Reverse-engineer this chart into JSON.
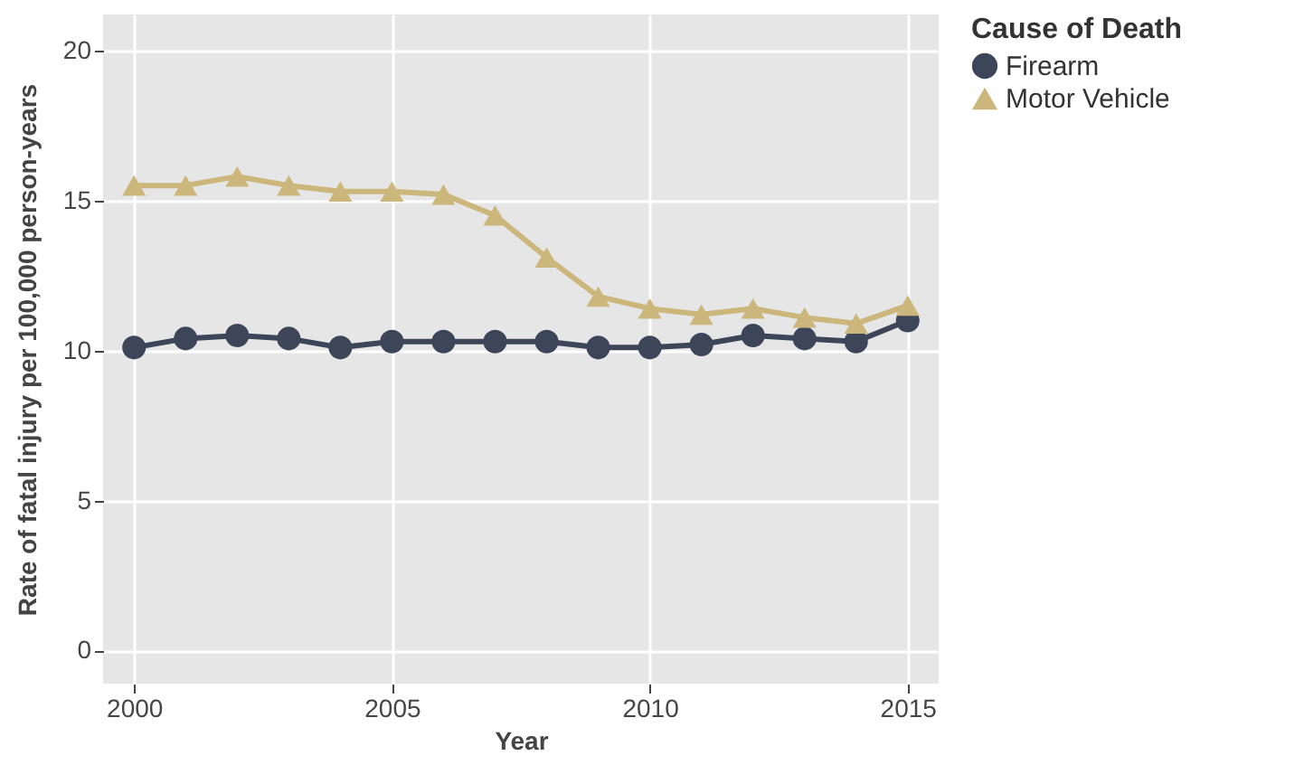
{
  "chart_data": {
    "type": "line",
    "xlabel": "Year",
    "ylabel": "Rate of fatal injury per 100,000 person-years",
    "legend_title": "Cause of Death",
    "x": [
      2000,
      2001,
      2002,
      2003,
      2004,
      2005,
      2006,
      2007,
      2008,
      2009,
      2010,
      2011,
      2012,
      2013,
      2014,
      2015
    ],
    "series": [
      {
        "name": "Firearm",
        "color": "#3d4659",
        "marker": "circle",
        "values": [
          10.1,
          10.4,
          10.5,
          10.4,
          10.1,
          10.3,
          10.3,
          10.3,
          10.3,
          10.1,
          10.1,
          10.2,
          10.5,
          10.4,
          10.3,
          11.0
        ]
      },
      {
        "name": "Motor Vehicle",
        "color": "#cbb77b",
        "marker": "triangle",
        "values": [
          15.5,
          15.5,
          15.8,
          15.5,
          15.3,
          15.3,
          15.2,
          14.5,
          13.1,
          11.8,
          11.4,
          11.2,
          11.4,
          11.1,
          10.9,
          11.5
        ]
      }
    ],
    "xlim": [
      1999.4,
      2015.6
    ],
    "xticks": [
      2000,
      2005,
      2010,
      2015
    ],
    "ylim": [
      -1.1,
      21.2
    ],
    "yticks": [
      0,
      5,
      10,
      15,
      20
    ],
    "grid": true,
    "legend": "right",
    "line_style": "solid"
  }
}
